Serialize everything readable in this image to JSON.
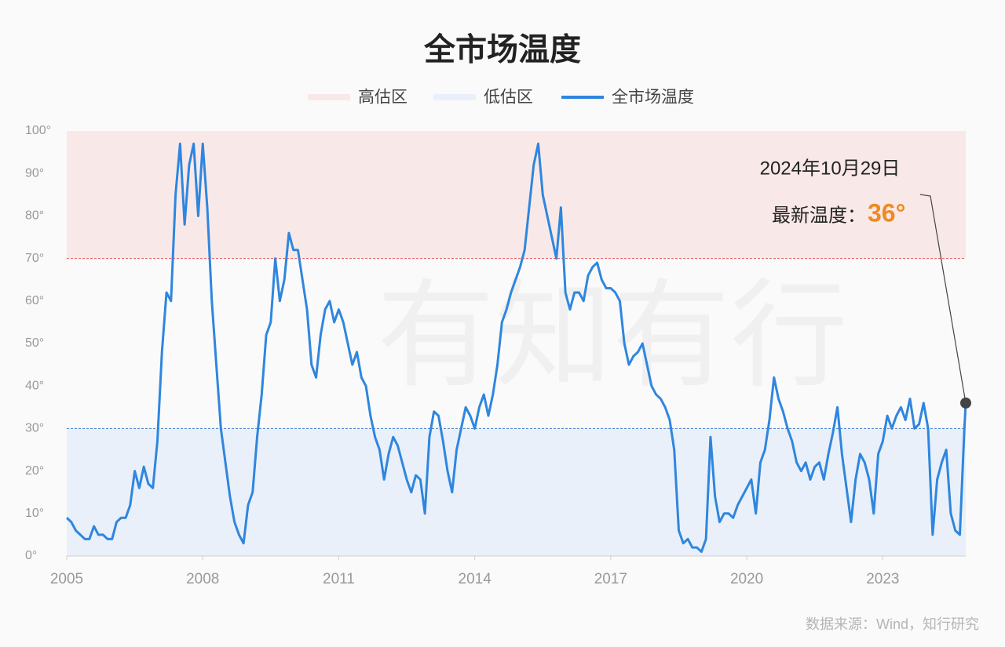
{
  "chart_data": {
    "type": "line",
    "title": "全市场温度",
    "watermark": "有知有行",
    "source": "数据来源：Wind，知行研究",
    "bands": [
      {
        "name": "高估区",
        "range": [
          70,
          100
        ],
        "color": "#f8e9e8",
        "line_color": "#e05a5a"
      },
      {
        "name": "低估区",
        "range": [
          0,
          30
        ],
        "color": "#e9f0f9",
        "line_color": "#3a7fd0"
      }
    ],
    "x": [
      2005,
      2005.1,
      2005.2,
      2005.3,
      2005.4,
      2005.5,
      2005.6,
      2005.7,
      2005.8,
      2005.9,
      2006,
      2006.1,
      2006.2,
      2006.3,
      2006.4,
      2006.5,
      2006.6,
      2006.7,
      2006.8,
      2006.9,
      2007,
      2007.1,
      2007.2,
      2007.3,
      2007.4,
      2007.5,
      2007.6,
      2007.7,
      2007.8,
      2007.9,
      2008,
      2008.1,
      2008.2,
      2008.3,
      2008.4,
      2008.5,
      2008.6,
      2008.7,
      2008.8,
      2008.9,
      2009,
      2009.1,
      2009.2,
      2009.3,
      2009.4,
      2009.5,
      2009.6,
      2009.7,
      2009.8,
      2009.9,
      2010,
      2010.1,
      2010.2,
      2010.3,
      2010.4,
      2010.5,
      2010.6,
      2010.7,
      2010.8,
      2010.9,
      2011,
      2011.1,
      2011.2,
      2011.3,
      2011.4,
      2011.5,
      2011.6,
      2011.7,
      2011.8,
      2011.9,
      2012,
      2012.1,
      2012.2,
      2012.3,
      2012.4,
      2012.5,
      2012.6,
      2012.7,
      2012.8,
      2012.9,
      2013,
      2013.1,
      2013.2,
      2013.3,
      2013.4,
      2013.5,
      2013.6,
      2013.7,
      2013.8,
      2013.9,
      2014,
      2014.1,
      2014.2,
      2014.3,
      2014.4,
      2014.5,
      2014.6,
      2014.7,
      2014.8,
      2014.9,
      2015,
      2015.1,
      2015.2,
      2015.3,
      2015.4,
      2015.5,
      2015.6,
      2015.7,
      2015.8,
      2015.9,
      2016,
      2016.1,
      2016.2,
      2016.3,
      2016.4,
      2016.5,
      2016.6,
      2016.7,
      2016.8,
      2016.9,
      2017,
      2017.1,
      2017.2,
      2017.3,
      2017.4,
      2017.5,
      2017.6,
      2017.7,
      2017.8,
      2017.9,
      2018,
      2018.1,
      2018.2,
      2018.3,
      2018.4,
      2018.5,
      2018.6,
      2018.7,
      2018.8,
      2018.9,
      2019,
      2019.1,
      2019.2,
      2019.3,
      2019.4,
      2019.5,
      2019.6,
      2019.7,
      2019.8,
      2019.9,
      2020,
      2020.1,
      2020.2,
      2020.3,
      2020.4,
      2020.5,
      2020.6,
      2020.7,
      2020.8,
      2020.9,
      2021,
      2021.1,
      2021.2,
      2021.3,
      2021.4,
      2021.5,
      2021.6,
      2021.7,
      2021.8,
      2021.9,
      2022,
      2022.1,
      2022.2,
      2022.3,
      2022.4,
      2022.5,
      2022.6,
      2022.7,
      2022.8,
      2022.9,
      2023,
      2023.1,
      2023.2,
      2023.3,
      2023.4,
      2023.5,
      2023.6,
      2023.7,
      2023.8,
      2023.9,
      2024,
      2024.1,
      2024.2,
      2024.3,
      2024.4,
      2024.5,
      2024.6,
      2024.7,
      2024.8,
      2024.83
    ],
    "series": [
      {
        "name": "全市场温度",
        "color": "#2f86de",
        "values": [
          9,
          8,
          6,
          5,
          4,
          4,
          7,
          5,
          5,
          4,
          4,
          8,
          9,
          9,
          12,
          20,
          16,
          21,
          17,
          16,
          27,
          48,
          62,
          60,
          85,
          97,
          78,
          92,
          97,
          80,
          97,
          82,
          60,
          45,
          30,
          22,
          14,
          8,
          5,
          3,
          12,
          15,
          28,
          38,
          52,
          55,
          70,
          60,
          65,
          76,
          72,
          72,
          65,
          58,
          45,
          42,
          52,
          58,
          60,
          55,
          58,
          55,
          50,
          45,
          48,
          42,
          40,
          33,
          28,
          25,
          18,
          24,
          28,
          26,
          22,
          18,
          15,
          19,
          18,
          10,
          28,
          34,
          33,
          27,
          20,
          15,
          25,
          30,
          35,
          33,
          30,
          35,
          38,
          33,
          38,
          45,
          55,
          58,
          62,
          65,
          68,
          72,
          82,
          92,
          97,
          85,
          80,
          75,
          70,
          82,
          62,
          58,
          62,
          62,
          60,
          66,
          68,
          69,
          65,
          63,
          63,
          62,
          60,
          50,
          45,
          47,
          48,
          50,
          45,
          40,
          38,
          37,
          35,
          32,
          25,
          6,
          3,
          4,
          2,
          2,
          1,
          4,
          28,
          14,
          8,
          10,
          10,
          9,
          12,
          14,
          16,
          18,
          10,
          22,
          25,
          32,
          42,
          37,
          34,
          30,
          27,
          22,
          20,
          22,
          18,
          21,
          22,
          18,
          24,
          29,
          35,
          24,
          16,
          8,
          18,
          24,
          22,
          18,
          10,
          24,
          27,
          33,
          30,
          33,
          35,
          32,
          37,
          30,
          31,
          36,
          30,
          5,
          18,
          22,
          25,
          10,
          6,
          5,
          30,
          36
        ]
      }
    ],
    "xlim": [
      2005,
      2024.83
    ],
    "xticks": [
      2005,
      2008,
      2011,
      2014,
      2017,
      2020,
      2023
    ],
    "ylim": [
      0,
      100
    ],
    "yticks": [
      {
        "value": 0,
        "label": "0°"
      },
      {
        "value": 10,
        "label": "10°"
      },
      {
        "value": 20,
        "label": "20°"
      },
      {
        "value": 30,
        "label": "30°"
      },
      {
        "value": 40,
        "label": "40°"
      },
      {
        "value": 50,
        "label": "50°"
      },
      {
        "value": 60,
        "label": "60°"
      },
      {
        "value": 70,
        "label": "70°"
      },
      {
        "value": 80,
        "label": "80°"
      },
      {
        "value": 90,
        "label": "90°"
      },
      {
        "value": 100,
        "label": "100°"
      }
    ],
    "annotation": {
      "date": "2024年10月29日",
      "label": "最新温度：",
      "x": 2024.83,
      "value": 36,
      "value_label": "36°",
      "value_color": "#ef8a22"
    }
  }
}
